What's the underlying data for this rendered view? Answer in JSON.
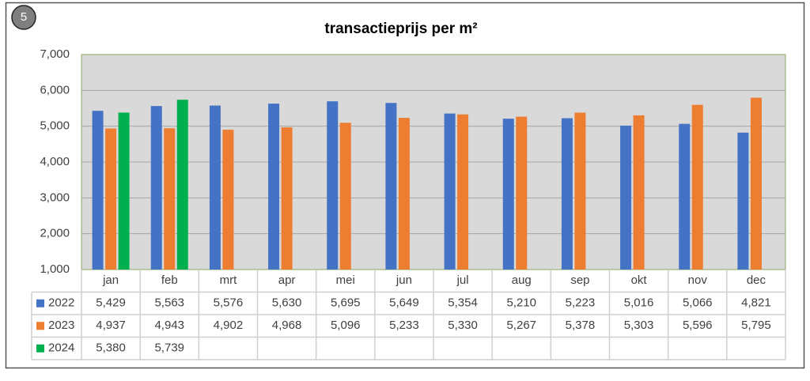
{
  "chart_data": {
    "type": "bar",
    "label": "5",
    "title": "transactieprijs per m²",
    "categories": [
      "jan",
      "feb",
      "mrt",
      "apr",
      "mei",
      "jun",
      "jul",
      "aug",
      "sep",
      "okt",
      "nov",
      "dec"
    ],
    "series": [
      {
        "name": "2022",
        "color": "#4472c4",
        "values": [
          5429,
          5563,
          5576,
          5630,
          5695,
          5649,
          5354,
          5210,
          5223,
          5016,
          5066,
          4821
        ],
        "value_labels": [
          "5,429",
          "5,563",
          "5,576",
          "5,630",
          "5,695",
          "5,649",
          "5,354",
          "5,210",
          "5,223",
          "5,016",
          "5,066",
          "4,821"
        ]
      },
      {
        "name": "2023",
        "color": "#ed7d31",
        "values": [
          4937,
          4943,
          4902,
          4968,
          5096,
          5233,
          5330,
          5267,
          5378,
          5303,
          5596,
          5795
        ],
        "value_labels": [
          "4,937",
          "4,943",
          "4,902",
          "4,968",
          "5,096",
          "5,233",
          "5,330",
          "5,267",
          "5,378",
          "5,303",
          "5,596",
          "5,795"
        ]
      },
      {
        "name": "2024",
        "color": "#00b050",
        "values": [
          5380,
          5739,
          null,
          null,
          null,
          null,
          null,
          null,
          null,
          null,
          null,
          null
        ],
        "value_labels": [
          "5,380",
          "5,739",
          null,
          null,
          null,
          null,
          null,
          null,
          null,
          null,
          null,
          null
        ]
      }
    ],
    "ylim": [
      1000,
      7000
    ],
    "yticks": [
      {
        "value": 1000,
        "label": "1,000"
      },
      {
        "value": 2000,
        "label": "2,000"
      },
      {
        "value": 3000,
        "label": "3,000"
      },
      {
        "value": 4000,
        "label": "4,000"
      },
      {
        "value": 5000,
        "label": "5,000"
      },
      {
        "value": 6000,
        "label": "6,000"
      },
      {
        "value": 7000,
        "label": "7,000"
      }
    ],
    "grid": true
  }
}
